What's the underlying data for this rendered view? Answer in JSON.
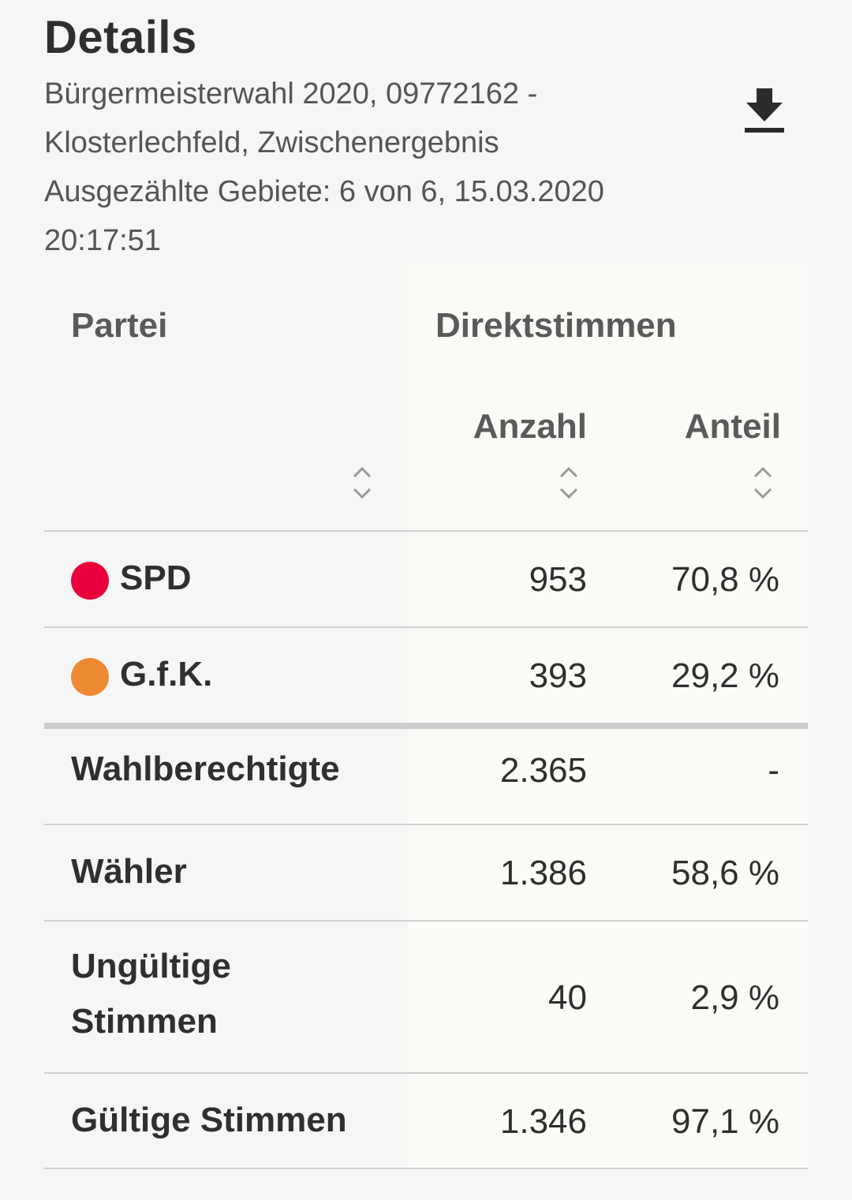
{
  "header": {
    "title": "Details",
    "line1": "Bürgermeisterwahl 2020, 09772162 -",
    "line2": "Klosterlechfeld, Zwischenergebnis",
    "line3": "Ausgezählte Gebiete: 6 von 6, 15.03.2020",
    "line4": "20:17:51",
    "download_icon": "download-icon"
  },
  "table": {
    "col_party": "Partei",
    "col_group": "Direktstimmen",
    "col_count": "Anzahl",
    "col_share": "Anteil",
    "sort_icon": "sort-icon",
    "parties": [
      {
        "name": "SPD",
        "color": "#e8003c",
        "count": "953",
        "share": "70,8 %"
      },
      {
        "name": "G.f.K.",
        "color": "#ed8a33",
        "count": "393",
        "share": "29,2 %"
      }
    ],
    "summary": [
      {
        "label": "Wahlberechtigte",
        "count": "2.365",
        "share": "-"
      },
      {
        "label": "Wähler",
        "count": "1.386",
        "share": "58,6 %"
      },
      {
        "label": "Ungültige Stimmen",
        "label_line1": "Ungültige",
        "label_line2": "Stimmen",
        "count": "40",
        "share": "2,9 %"
      },
      {
        "label": "Gültige Stimmen",
        "count": "1.346",
        "share": "97,1 %"
      }
    ]
  }
}
